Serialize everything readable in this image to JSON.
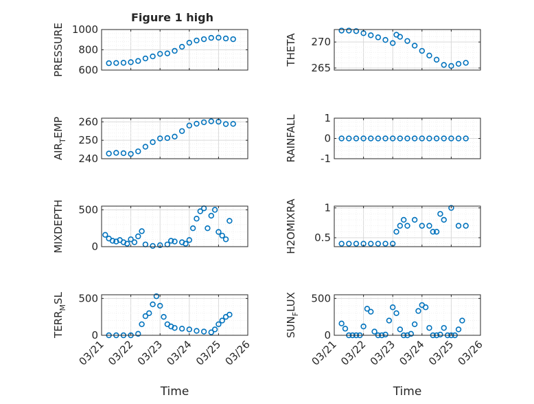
{
  "figure": {
    "title": "Figure 1 high",
    "xlabel": "Time",
    "x_ticks": [
      "03/21",
      "03/22",
      "03/23",
      "03/24",
      "03/25",
      "03/26"
    ]
  },
  "chart_data": [
    {
      "type": "scatter",
      "ylabel": "PRESSURE",
      "xlim": [
        "03/21",
        "03/26"
      ],
      "ylim": [
        600,
        1000
      ],
      "yticks": [
        "600",
        "800",
        "1000"
      ],
      "grid": true,
      "marker": "circle",
      "color": "#0072BD",
      "x": [
        "03/21 06:00",
        "03/21 12:00",
        "03/21 18:00",
        "03/22 00:00",
        "03/22 06:00",
        "03/22 12:00",
        "03/22 18:00",
        "03/23 00:00",
        "03/23 06:00",
        "03/23 12:00",
        "03/23 18:00",
        "03/24 00:00",
        "03/24 06:00",
        "03/24 12:00",
        "03/24 18:00",
        "03/25 00:00",
        "03/25 06:00",
        "03/25 12:00"
      ],
      "values": [
        668,
        670,
        672,
        678,
        690,
        715,
        735,
        760,
        765,
        790,
        830,
        870,
        892,
        905,
        918,
        920,
        912,
        905
      ]
    },
    {
      "type": "scatter",
      "ylabel": "THETA",
      "xlim": [
        "03/21",
        "03/26"
      ],
      "ylim": [
        264.6,
        272.4
      ],
      "yticks": [
        "265",
        "270"
      ],
      "grid": true,
      "marker": "circle",
      "color": "#0072BD",
      "x": [
        "03/21 06:00",
        "03/21 12:00",
        "03/21 18:00",
        "03/22 00:00",
        "03/22 06:00",
        "03/22 12:00",
        "03/22 18:00",
        "03/23 00:00",
        "03/23 03:00",
        "03/23 06:00",
        "03/23 12:00",
        "03/23 18:00",
        "03/24 00:00",
        "03/24 06:00",
        "03/24 12:00",
        "03/24 18:00",
        "03/25 00:00",
        "03/25 06:00",
        "03/25 12:00"
      ],
      "values": [
        272.2,
        272.2,
        272.1,
        271.7,
        271.3,
        270.9,
        270.4,
        269.8,
        271.4,
        271.0,
        270.2,
        269.3,
        268.3,
        267.4,
        266.6,
        265.6,
        265.4,
        265.8,
        266.0
      ]
    },
    {
      "type": "scatter",
      "ylabel": "AIR_TEMP",
      "ylabel_parts": [
        "AIR",
        "T",
        "EMP"
      ],
      "xlim": [
        "03/21",
        "03/26"
      ],
      "ylim": [
        240,
        262
      ],
      "yticks": [
        "240",
        "250",
        "260"
      ],
      "grid": true,
      "marker": "circle",
      "color": "#0072BD",
      "x": [
        "03/21 06:00",
        "03/21 12:00",
        "03/21 18:00",
        "03/22 00:00",
        "03/22 06:00",
        "03/22 12:00",
        "03/22 18:00",
        "03/23 00:00",
        "03/23 06:00",
        "03/23 12:00",
        "03/23 18:00",
        "03/24 00:00",
        "03/24 06:00",
        "03/24 12:00",
        "03/24 18:00",
        "03/25 00:00",
        "03/25 06:00",
        "03/25 12:00"
      ],
      "values": [
        242.8,
        243.2,
        243.0,
        242.6,
        244.0,
        246.5,
        249.0,
        251.0,
        251.2,
        252.0,
        255.0,
        258.0,
        259.0,
        259.8,
        260.3,
        260.1,
        258.8,
        258.9
      ]
    },
    {
      "type": "scatter",
      "ylabel": "RAINFALL",
      "xlim": [
        "03/21",
        "03/26"
      ],
      "ylim": [
        -1,
        1
      ],
      "yticks": [
        "-1",
        "0",
        "1"
      ],
      "grid": true,
      "marker": "circle",
      "color": "#0072BD",
      "x": [
        "03/21 06:00",
        "03/21 12:00",
        "03/21 18:00",
        "03/22 00:00",
        "03/22 06:00",
        "03/22 12:00",
        "03/22 18:00",
        "03/23 00:00",
        "03/23 06:00",
        "03/23 12:00",
        "03/23 18:00",
        "03/24 00:00",
        "03/24 06:00",
        "03/24 12:00",
        "03/24 18:00",
        "03/25 00:00",
        "03/25 06:00",
        "03/25 12:00"
      ],
      "values": [
        0,
        0,
        0,
        0,
        0,
        0,
        0,
        0,
        0,
        0,
        0,
        0,
        0,
        0,
        0,
        0,
        0,
        0
      ]
    },
    {
      "type": "scatter",
      "ylabel": "MIXDEPTH",
      "xlim": [
        "03/21",
        "03/26"
      ],
      "ylim": [
        0,
        550
      ],
      "yticks": [
        "0",
        "500"
      ],
      "grid": true,
      "marker": "circle",
      "color": "#0072BD",
      "x": [
        "03/21 03:00",
        "03/21 06:00",
        "03/21 09:00",
        "03/21 12:00",
        "03/21 15:00",
        "03/21 18:00",
        "03/21 21:00",
        "03/22 00:00",
        "03/22 03:00",
        "03/22 06:00",
        "03/22 09:00",
        "03/22 12:00",
        "03/22 18:00",
        "03/23 00:00",
        "03/23 06:00",
        "03/23 09:00",
        "03/23 12:00",
        "03/23 18:00",
        "03/23 21:00",
        "03/24 00:00",
        "03/24 03:00",
        "03/24 06:00",
        "03/24 09:00",
        "03/24 12:00",
        "03/24 15:00",
        "03/24 18:00",
        "03/24 21:00",
        "03/25 00:00",
        "03/25 03:00",
        "03/25 06:00",
        "03/25 09:00"
      ],
      "values": [
        160,
        110,
        80,
        70,
        90,
        60,
        40,
        100,
        60,
        140,
        210,
        30,
        10,
        20,
        30,
        80,
        70,
        60,
        40,
        90,
        250,
        380,
        480,
        520,
        250,
        420,
        500,
        200,
        150,
        100,
        350
      ]
    },
    {
      "type": "scatter",
      "ylabel": "H2OMIXRA",
      "xlim": [
        "03/21",
        "03/26"
      ],
      "ylim": [
        0.35,
        1.03
      ],
      "yticks": [
        "0.5",
        "1"
      ],
      "grid": true,
      "marker": "circle",
      "color": "#0072BD",
      "x": [
        "03/21 06:00",
        "03/21 12:00",
        "03/21 18:00",
        "03/22 00:00",
        "03/22 06:00",
        "03/22 12:00",
        "03/22 18:00",
        "03/23 00:00",
        "03/23 03:00",
        "03/23 06:00",
        "03/23 09:00",
        "03/23 12:00",
        "03/23 18:00",
        "03/24 00:00",
        "03/24 06:00",
        "03/24 09:00",
        "03/24 12:00",
        "03/24 15:00",
        "03/24 18:00",
        "03/25 00:00",
        "03/25 06:00",
        "03/25 12:00"
      ],
      "values": [
        0.4,
        0.4,
        0.4,
        0.4,
        0.4,
        0.4,
        0.4,
        0.4,
        0.6,
        0.7,
        0.8,
        0.7,
        0.8,
        0.7,
        0.7,
        0.6,
        0.6,
        0.9,
        0.8,
        1.0,
        0.7,
        0.7
      ]
    },
    {
      "type": "scatter",
      "ylabel": "TERR_MSL",
      "ylabel_parts": [
        "TERR",
        "M",
        "SL"
      ],
      "xlim": [
        "03/21",
        "03/26"
      ],
      "ylim": [
        0,
        550
      ],
      "yticks": [
        "0",
        "500"
      ],
      "grid": true,
      "marker": "circle",
      "color": "#0072BD",
      "x": [
        "03/21 06:00",
        "03/21 12:00",
        "03/21 18:00",
        "03/22 00:00",
        "03/22 06:00",
        "03/22 09:00",
        "03/22 12:00",
        "03/22 15:00",
        "03/22 18:00",
        "03/22 21:00",
        "03/23 00:00",
        "03/23 03:00",
        "03/23 06:00",
        "03/23 09:00",
        "03/23 12:00",
        "03/23 18:00",
        "03/24 00:00",
        "03/24 06:00",
        "03/24 12:00",
        "03/24 18:00",
        "03/24 21:00",
        "03/25 00:00",
        "03/25 03:00",
        "03/25 06:00",
        "03/25 09:00"
      ],
      "values": [
        0,
        0,
        0,
        0,
        20,
        150,
        260,
        300,
        420,
        530,
        400,
        250,
        150,
        120,
        100,
        90,
        80,
        60,
        50,
        40,
        80,
        150,
        200,
        250,
        280
      ]
    },
    {
      "type": "scatter",
      "ylabel": "SUN_FLUX",
      "ylabel_parts": [
        "SUN",
        "F",
        "LUX"
      ],
      "xlim": [
        "03/21",
        "03/26"
      ],
      "ylim": [
        0,
        550
      ],
      "yticks": [
        "0",
        "500"
      ],
      "grid": true,
      "marker": "circle",
      "color": "#0072BD",
      "x": [
        "03/21 06:00",
        "03/21 09:00",
        "03/21 12:00",
        "03/21 15:00",
        "03/21 18:00",
        "03/21 21:00",
        "03/22 00:00",
        "03/22 03:00",
        "03/22 06:00",
        "03/22 09:00",
        "03/22 12:00",
        "03/22 15:00",
        "03/22 18:00",
        "03/22 21:00",
        "03/23 00:00",
        "03/23 03:00",
        "03/23 06:00",
        "03/23 09:00",
        "03/23 12:00",
        "03/23 15:00",
        "03/23 18:00",
        "03/23 21:00",
        "03/24 00:00",
        "03/24 03:00",
        "03/24 06:00",
        "03/24 09:00",
        "03/24 12:00",
        "03/24 15:00",
        "03/24 18:00",
        "03/24 21:00",
        "03/25 00:00",
        "03/25 03:00",
        "03/25 06:00",
        "03/25 09:00"
      ],
      "values": [
        160,
        90,
        0,
        0,
        0,
        0,
        120,
        360,
        320,
        50,
        0,
        0,
        10,
        200,
        380,
        300,
        80,
        0,
        0,
        20,
        150,
        330,
        410,
        380,
        100,
        0,
        0,
        10,
        100,
        0,
        0,
        0,
        80,
        200
      ]
    }
  ]
}
